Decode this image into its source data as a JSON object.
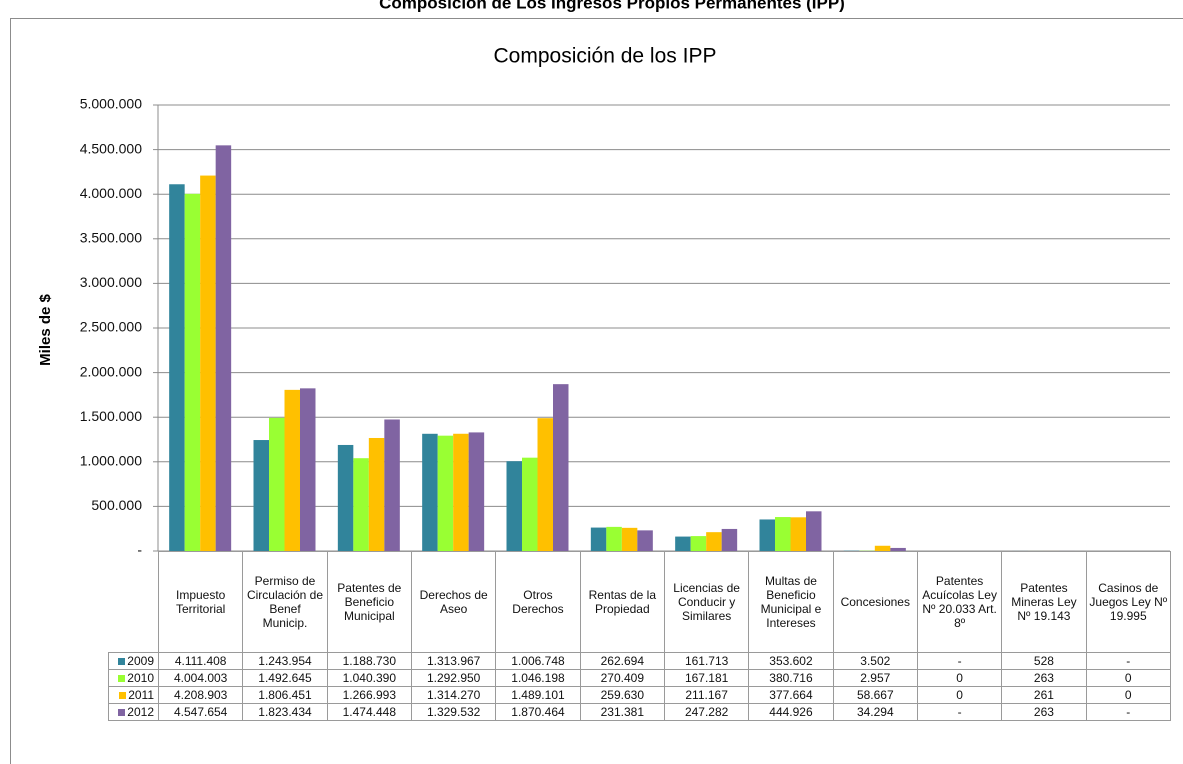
{
  "page_title": "Composición de Los Ingresos Propios Permanentes (IPP)",
  "chart_data": {
    "type": "bar",
    "title": "Composición de los IPP",
    "y_label": "Miles de $",
    "categories": [
      "Impuesto Territorial",
      "Permiso de Circulación de Benef Municip.",
      "Patentes de Beneficio Municipal",
      "Derechos de Aseo",
      "Otros Derechos",
      "Rentas de la Propiedad",
      "Licencias de Conducir y Similares",
      "Multas de Beneficio Municipal e Intereses",
      "Concesiones",
      "Patentes Acuícolas Ley Nº 20.033 Art. 8º",
      "Patentes Mineras Ley Nº 19.143",
      "Casinos de Juegos Ley Nº 19.995"
    ],
    "ylim": [
      0,
      5000000
    ],
    "yticks": [
      {
        "value": 0,
        "label": "-"
      },
      {
        "value": 500000,
        "label": "500.000"
      },
      {
        "value": 1000000,
        "label": "1.000.000"
      },
      {
        "value": 1500000,
        "label": "1.500.000"
      },
      {
        "value": 2000000,
        "label": "2.000.000"
      },
      {
        "value": 2500000,
        "label": "2.500.000"
      },
      {
        "value": 3000000,
        "label": "3.000.000"
      },
      {
        "value": 3500000,
        "label": "3.500.000"
      },
      {
        "value": 4000000,
        "label": "4.000.000"
      },
      {
        "value": 4500000,
        "label": "4.500.000"
      },
      {
        "value": 5000000,
        "label": "5.000.000"
      }
    ],
    "grid": true,
    "series": [
      {
        "name": "2009",
        "color": "#31849b",
        "values": [
          4111408,
          1243954,
          1188730,
          1313967,
          1006748,
          262694,
          161713,
          353602,
          3502,
          null,
          528,
          null
        ],
        "value_labels": [
          "4.111.408",
          "1.243.954",
          "1.188.730",
          "1.313.967",
          "1.006.748",
          "262.694",
          "161.713",
          "353.602",
          "3.502",
          "-",
          "528",
          "-"
        ]
      },
      {
        "name": "2010",
        "color": "#99ff33",
        "values": [
          4004003,
          1492645,
          1040390,
          1292950,
          1046198,
          270409,
          167181,
          380716,
          2957,
          0,
          263,
          0
        ],
        "value_labels": [
          "4.004.003",
          "1.492.645",
          "1.040.390",
          "1.292.950",
          "1.046.198",
          "270.409",
          "167.181",
          "380.716",
          "2.957",
          "0",
          "263",
          "0"
        ]
      },
      {
        "name": "2011",
        "color": "#ffc000",
        "values": [
          4208903,
          1806451,
          1266993,
          1314270,
          1489101,
          259630,
          211167,
          377664,
          58667,
          0,
          261,
          0
        ],
        "value_labels": [
          "4.208.903",
          "1.806.451",
          "1.266.993",
          "1.314.270",
          "1.489.101",
          "259.630",
          "211.167",
          "377.664",
          "58.667",
          "0",
          "261",
          "0"
        ]
      },
      {
        "name": "2012",
        "color": "#8064a2",
        "values": [
          4547654,
          1823434,
          1474448,
          1329532,
          1870464,
          231381,
          247282,
          444926,
          34294,
          null,
          263,
          null
        ],
        "value_labels": [
          "4.547.654",
          "1.823.434",
          "1.474.448",
          "1.329.532",
          "1.870.464",
          "231.381",
          "247.282",
          "444.926",
          "34.294",
          "-",
          "263",
          "-"
        ]
      }
    ]
  }
}
